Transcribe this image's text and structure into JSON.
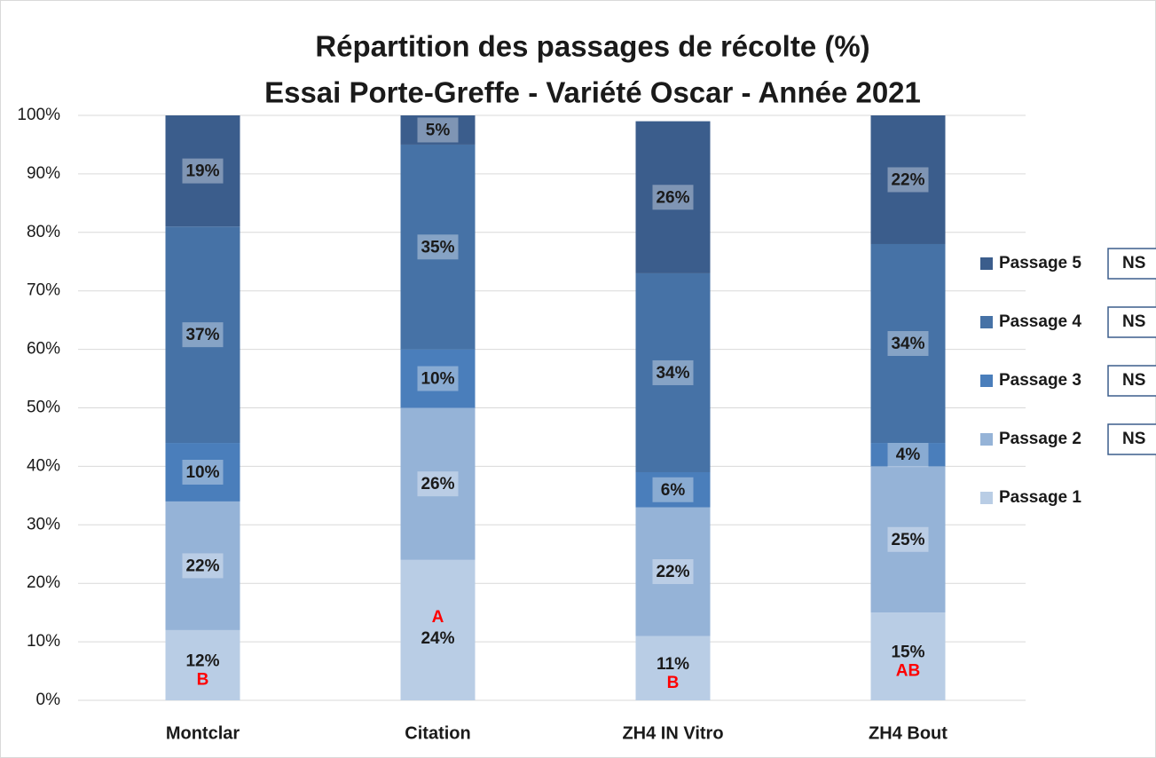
{
  "chart_data": {
    "type": "stacked_bar",
    "title": "Répartition des passages de récolte (%)",
    "subtitle": "Essai Porte-Greffe - Variété Oscar - Année 2021",
    "categories": [
      "Montclar",
      "Citation",
      "ZH4 IN Vitro",
      "ZH4 Bout"
    ],
    "series": [
      {
        "name": "Passage 1",
        "color": "#b9cde5",
        "values": [
          12,
          24,
          11,
          15
        ],
        "value_labels": [
          "12%",
          "24%",
          "11%",
          "15%"
        ],
        "letters": [
          "B",
          "A",
          "B",
          "AB"
        ]
      },
      {
        "name": "Passage 2",
        "color": "#95b3d7",
        "values": [
          22,
          26,
          22,
          25
        ],
        "value_labels": [
          "22%",
          "26%",
          "22%",
          "25%"
        ],
        "stat": "NS"
      },
      {
        "name": "Passage 3",
        "color": "#4a7ebb",
        "values": [
          10,
          10,
          6,
          4
        ],
        "value_labels": [
          "10%",
          "10%",
          "6%",
          "4%"
        ],
        "stat": "NS"
      },
      {
        "name": "Passage 4",
        "color": "#4672a6",
        "values": [
          37,
          35,
          34,
          34
        ],
        "value_labels": [
          "37%",
          "35%",
          "34%",
          "34%"
        ],
        "stat": "NS"
      },
      {
        "name": "Passage 5",
        "color": "#3b5d8c",
        "values": [
          19,
          5,
          26,
          22
        ],
        "value_labels": [
          "19%",
          "5%",
          "26%",
          "22%"
        ],
        "stat": "NS"
      }
    ],
    "ylim": [
      0,
      100
    ],
    "yticks": [
      {
        "value": 0,
        "label": "0%"
      },
      {
        "value": 10,
        "label": "10%"
      },
      {
        "value": 20,
        "label": "20%"
      },
      {
        "value": 30,
        "label": "30%"
      },
      {
        "value": 40,
        "label": "40%"
      },
      {
        "value": 50,
        "label": "50%"
      },
      {
        "value": 60,
        "label": "60%"
      },
      {
        "value": 70,
        "label": "70%"
      },
      {
        "value": 80,
        "label": "80%"
      },
      {
        "value": 90,
        "label": "90%"
      },
      {
        "value": 100,
        "label": "100%"
      }
    ],
    "grid": true,
    "legend": "right"
  }
}
